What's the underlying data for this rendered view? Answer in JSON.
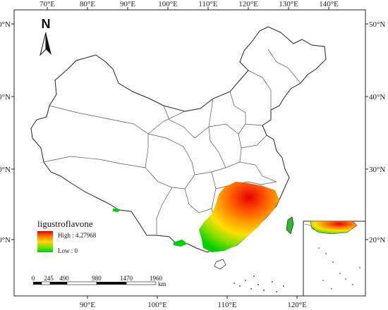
{
  "map": {
    "top_lon_ticks": [
      "70°E",
      "80°E",
      "90°E",
      "100°E",
      "110°E",
      "120°E",
      "130°E",
      "140°E"
    ],
    "bottom_lon_ticks": [
      "90°E",
      "100°E",
      "110°E",
      "120°E"
    ],
    "lat_ticks": [
      "50°N",
      "40°N",
      "30°N",
      "20°N"
    ],
    "north_label": "N"
  },
  "legend": {
    "title": "ligustroflavone",
    "high_label": "High : 4.27968",
    "low_label": "Low : 0",
    "gradient": [
      "#e60000",
      "#ff7700",
      "#ffd700",
      "#7ee000",
      "#00d000"
    ]
  },
  "scale_bar": {
    "labels": [
      "0",
      "245",
      "490",
      "980",
      "1470",
      "1960"
    ],
    "unit": "km"
  }
}
